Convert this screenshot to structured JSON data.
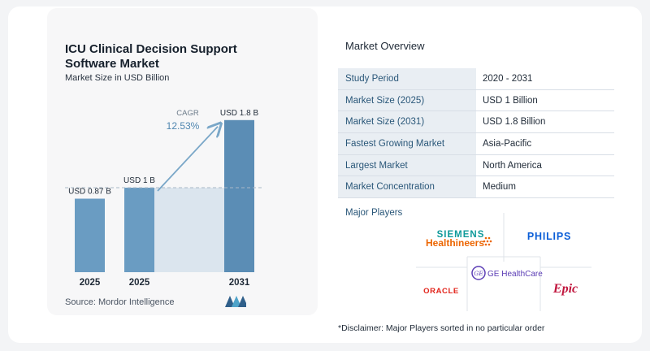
{
  "chart_data": {
    "type": "bar",
    "title": "ICU Clinical Decision Support Software Market",
    "subtitle": "Market Size in USD Billion",
    "categories": [
      "2025",
      "2025",
      "2031"
    ],
    "values": [
      0.87,
      1.0,
      1.8
    ],
    "data_labels": [
      "USD 0.87 B",
      "USD 1 B",
      "USD 1.8 B"
    ],
    "cagr_label": "CAGR",
    "cagr_value": "12.53%",
    "source": "Source: Mordor Intelligence",
    "colors": {
      "bar": "#6a9cc2",
      "bar_dark": "#5b8db5",
      "shade": "#dbe5ee",
      "arrow": "#7aa7c8"
    },
    "grid": false
  },
  "overview": {
    "title": "Market Overview",
    "rows": [
      {
        "label": "Study Period",
        "value": "2020 - 2031"
      },
      {
        "label": "Market Size (2025)",
        "value": "USD 1 Billion"
      },
      {
        "label": "Market Size (2031)",
        "value": "USD 1.8 Billion"
      },
      {
        "label": "Fastest Growing Market",
        "value": "Asia-Pacific"
      },
      {
        "label": "Largest Market",
        "value": "North America"
      },
      {
        "label": "Market Concentration",
        "value": "Medium"
      }
    ],
    "major_players_label": "Major Players",
    "players": [
      "SIEMENS Healthineers",
      "PHILIPS",
      "GE HealthCare",
      "ORACLE",
      "Epic"
    ],
    "disclaimer": "*Disclaimer: Major Players sorted in no particular order"
  },
  "logos": {
    "siemens_line1": "SIEMENS",
    "siemens_line2": "Healthineers",
    "philips": "PHILIPS",
    "ge_mark": "GE",
    "ge_text": "GE HealthCare",
    "oracle": "ORACLE",
    "epic": "Epic"
  }
}
